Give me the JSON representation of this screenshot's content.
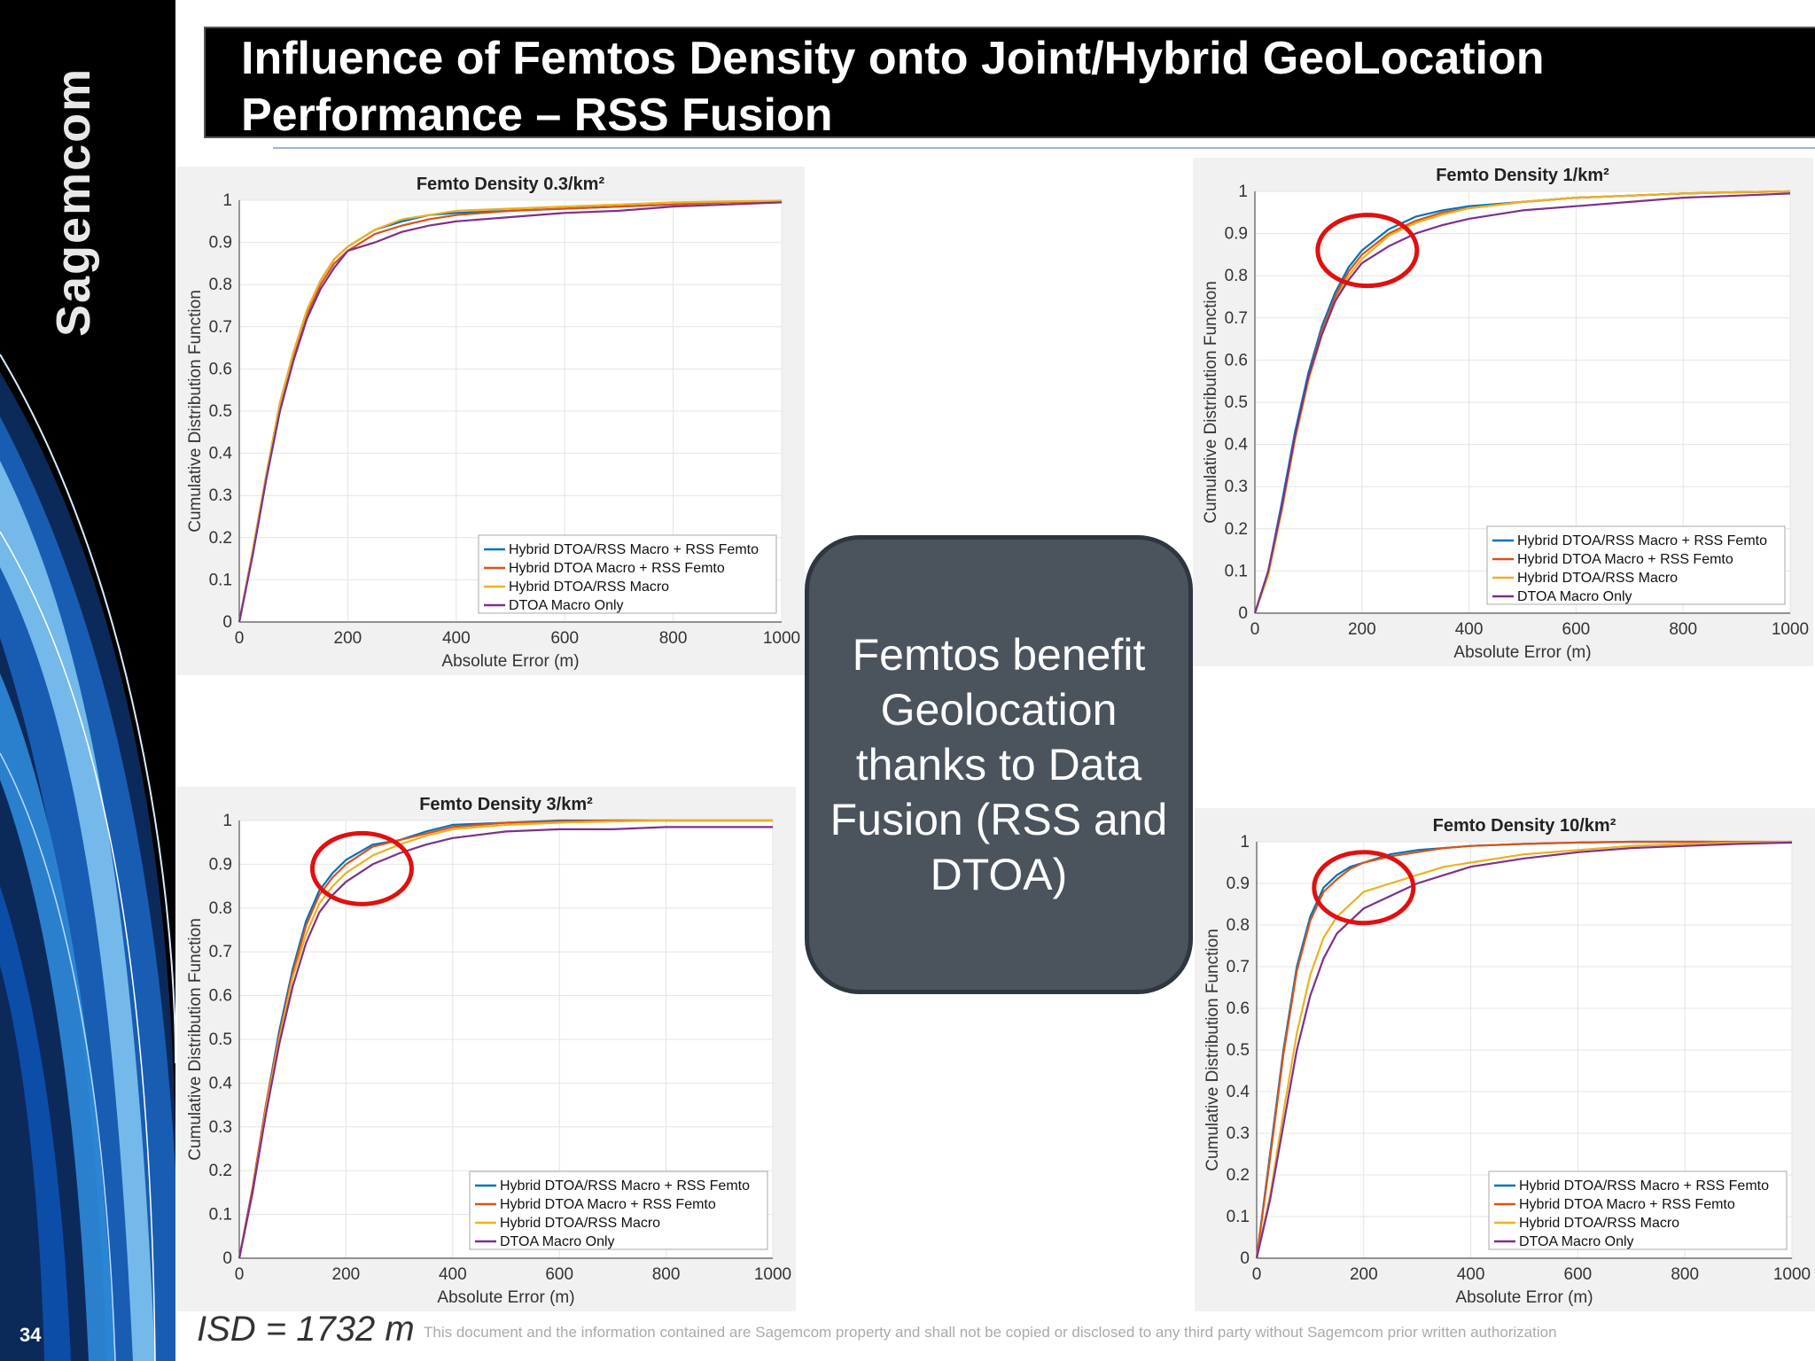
{
  "slide": {
    "title": "Influence of Femtos Density onto Joint/Hybrid GeoLocation Performance – RSS Fusion",
    "page_number": "34",
    "brand": "Sagemcom",
    "callout": "Femtos benefit Geolocation thanks to Data Fusion (RSS and DTOA)",
    "isd": "ISD = 1732 m",
    "footer": "This document and the information contained are Sagemcom property and shall not be copied or disclosed to any third party without Sagemcom prior written authorization",
    "colors": {
      "background": "#ffffff",
      "sidebar": "#000000",
      "title_bar": "#000000",
      "callout_fill": "#4b535d",
      "highlight_circle": "#e01010"
    }
  },
  "chart_data": [
    {
      "type": "line",
      "title": "Femto Density 0.3/km²",
      "xlabel": "Absolute Error (m)",
      "ylabel": "Cumulative Distribution Function",
      "xlim": [
        0,
        1000
      ],
      "ylim": [
        0,
        1
      ],
      "xticks": [
        0,
        200,
        400,
        600,
        800,
        1000
      ],
      "yticks": [
        0,
        0.1,
        0.2,
        0.3,
        0.4,
        0.5,
        0.6,
        0.7,
        0.8,
        0.9,
        1
      ],
      "grid": true,
      "legend_position": "bottom-right",
      "highlight": null,
      "series": [
        {
          "name": "Hybrid DTOA/RSS Macro + RSS Femto",
          "color": "#0072bd",
          "x": [
            0,
            25,
            50,
            75,
            100,
            125,
            150,
            175,
            200,
            250,
            300,
            350,
            400,
            500,
            600,
            700,
            800,
            900,
            1000
          ],
          "y": [
            0,
            0.17,
            0.35,
            0.52,
            0.64,
            0.74,
            0.81,
            0.86,
            0.89,
            0.93,
            0.95,
            0.965,
            0.97,
            0.975,
            0.98,
            0.985,
            0.99,
            0.995,
            0.998
          ]
        },
        {
          "name": "Hybrid DTOA Macro + RSS Femto",
          "color": "#d95319",
          "x": [
            0,
            25,
            50,
            75,
            100,
            125,
            150,
            175,
            200,
            250,
            300,
            350,
            400,
            500,
            600,
            700,
            800,
            900,
            1000
          ],
          "y": [
            0,
            0.17,
            0.35,
            0.51,
            0.63,
            0.73,
            0.8,
            0.85,
            0.88,
            0.92,
            0.94,
            0.955,
            0.965,
            0.975,
            0.98,
            0.985,
            0.99,
            0.995,
            0.998
          ]
        },
        {
          "name": "Hybrid DTOA/RSS Macro",
          "color": "#edb120",
          "x": [
            0,
            25,
            50,
            75,
            100,
            125,
            150,
            175,
            200,
            250,
            300,
            350,
            400,
            500,
            600,
            700,
            800,
            900,
            1000
          ],
          "y": [
            0,
            0.17,
            0.35,
            0.52,
            0.64,
            0.74,
            0.81,
            0.86,
            0.89,
            0.93,
            0.955,
            0.965,
            0.975,
            0.98,
            0.985,
            0.99,
            0.995,
            0.997,
            0.999
          ]
        },
        {
          "name": "DTOA Macro Only",
          "color": "#7e2f8e",
          "x": [
            0,
            25,
            50,
            75,
            100,
            125,
            150,
            175,
            200,
            250,
            300,
            350,
            400,
            500,
            600,
            700,
            800,
            900,
            1000
          ],
          "y": [
            0,
            0.16,
            0.34,
            0.5,
            0.62,
            0.72,
            0.79,
            0.84,
            0.88,
            0.9,
            0.925,
            0.94,
            0.95,
            0.96,
            0.97,
            0.975,
            0.985,
            0.99,
            0.995
          ]
        }
      ]
    },
    {
      "type": "line",
      "title": "Femto Density 1/km²",
      "xlabel": "Absolute Error (m)",
      "ylabel": "Cumulative Distribution Function",
      "xlim": [
        0,
        1000
      ],
      "ylim": [
        0,
        1
      ],
      "xticks": [
        0,
        200,
        400,
        600,
        800,
        1000
      ],
      "yticks": [
        0,
        0.1,
        0.2,
        0.3,
        0.4,
        0.5,
        0.6,
        0.7,
        0.8,
        0.9,
        1
      ],
      "grid": true,
      "legend_position": "bottom-right",
      "highlight": {
        "x": 210,
        "y": 0.86
      },
      "series": [
        {
          "name": "Hybrid DTOA/RSS Macro + RSS Femto",
          "color": "#0072bd",
          "x": [
            0,
            25,
            50,
            75,
            100,
            125,
            150,
            175,
            200,
            250,
            300,
            350,
            400,
            500,
            600,
            700,
            800,
            900,
            1000
          ],
          "y": [
            0,
            0.1,
            0.26,
            0.43,
            0.57,
            0.68,
            0.76,
            0.82,
            0.86,
            0.91,
            0.94,
            0.955,
            0.965,
            0.975,
            0.985,
            0.99,
            0.995,
            0.998,
            1
          ]
        },
        {
          "name": "Hybrid DTOA Macro + RSS Femto",
          "color": "#d95319",
          "x": [
            0,
            25,
            50,
            75,
            100,
            125,
            150,
            175,
            200,
            250,
            300,
            350,
            400,
            500,
            600,
            700,
            800,
            900,
            1000
          ],
          "y": [
            0,
            0.1,
            0.25,
            0.42,
            0.56,
            0.67,
            0.75,
            0.81,
            0.85,
            0.9,
            0.93,
            0.95,
            0.96,
            0.975,
            0.985,
            0.99,
            0.995,
            0.998,
            1
          ]
        },
        {
          "name": "Hybrid DTOA/RSS Macro",
          "color": "#edb120",
          "x": [
            0,
            25,
            50,
            75,
            100,
            125,
            150,
            175,
            200,
            250,
            300,
            350,
            400,
            500,
            600,
            700,
            800,
            900,
            1000
          ],
          "y": [
            0,
            0.09,
            0.24,
            0.41,
            0.55,
            0.66,
            0.74,
            0.8,
            0.84,
            0.895,
            0.925,
            0.945,
            0.96,
            0.975,
            0.985,
            0.99,
            0.995,
            0.998,
            1
          ]
        },
        {
          "name": "DTOA Macro Only",
          "color": "#7e2f8e",
          "x": [
            0,
            25,
            50,
            75,
            100,
            125,
            150,
            175,
            200,
            250,
            300,
            350,
            400,
            500,
            600,
            700,
            800,
            900,
            1000
          ],
          "y": [
            0,
            0.1,
            0.25,
            0.42,
            0.56,
            0.66,
            0.74,
            0.79,
            0.83,
            0.87,
            0.9,
            0.92,
            0.935,
            0.955,
            0.965,
            0.975,
            0.985,
            0.99,
            0.995
          ]
        }
      ]
    },
    {
      "type": "line",
      "title": "Femto Density 3/km²",
      "xlabel": "Absolute Error (m)",
      "ylabel": "Cumulative Distribution Function",
      "xlim": [
        0,
        1000
      ],
      "ylim": [
        0,
        1
      ],
      "xticks": [
        0,
        200,
        400,
        600,
        800,
        1000
      ],
      "yticks": [
        0,
        0.1,
        0.2,
        0.3,
        0.4,
        0.5,
        0.6,
        0.7,
        0.8,
        0.9,
        1
      ],
      "grid": true,
      "legend_position": "bottom-right",
      "highlight": {
        "x": 230,
        "y": 0.89
      },
      "series": [
        {
          "name": "Hybrid DTOA/RSS Macro + RSS Femto",
          "color": "#0072bd",
          "x": [
            0,
            25,
            50,
            75,
            100,
            125,
            150,
            175,
            200,
            250,
            300,
            350,
            400,
            500,
            600,
            700,
            800,
            900,
            1000
          ],
          "y": [
            0,
            0.16,
            0.35,
            0.52,
            0.66,
            0.77,
            0.84,
            0.88,
            0.91,
            0.945,
            0.955,
            0.975,
            0.99,
            0.995,
            1,
            1,
            1,
            1,
            1
          ]
        },
        {
          "name": "Hybrid DTOA Macro + RSS Femto",
          "color": "#d95319",
          "x": [
            0,
            25,
            50,
            75,
            100,
            125,
            150,
            175,
            200,
            250,
            300,
            350,
            400,
            500,
            600,
            700,
            800,
            900,
            1000
          ],
          "y": [
            0,
            0.16,
            0.35,
            0.51,
            0.65,
            0.76,
            0.83,
            0.87,
            0.9,
            0.94,
            0.955,
            0.97,
            0.985,
            0.995,
            0.998,
            1,
            1,
            1,
            1
          ]
        },
        {
          "name": "Hybrid DTOA/RSS Macro",
          "color": "#edb120",
          "x": [
            0,
            25,
            50,
            75,
            100,
            125,
            150,
            175,
            200,
            250,
            300,
            350,
            400,
            500,
            600,
            700,
            800,
            900,
            1000
          ],
          "y": [
            0,
            0.15,
            0.34,
            0.5,
            0.64,
            0.74,
            0.81,
            0.85,
            0.88,
            0.92,
            0.945,
            0.965,
            0.98,
            0.99,
            0.995,
            0.998,
            1,
            1,
            1
          ]
        },
        {
          "name": "DTOA Macro Only",
          "color": "#7e2f8e",
          "x": [
            0,
            25,
            50,
            75,
            100,
            125,
            150,
            175,
            200,
            250,
            300,
            350,
            400,
            500,
            600,
            700,
            800,
            900,
            1000
          ],
          "y": [
            0,
            0.15,
            0.33,
            0.49,
            0.62,
            0.72,
            0.79,
            0.83,
            0.86,
            0.9,
            0.925,
            0.945,
            0.96,
            0.975,
            0.98,
            0.98,
            0.985,
            0.985,
            0.985
          ]
        }
      ]
    },
    {
      "type": "line",
      "title": "Femto Density 10/km²",
      "xlabel": "Absolute Error (m)",
      "ylabel": "Cumulative Distribution Function",
      "xlim": [
        0,
        1000
      ],
      "ylim": [
        0,
        1
      ],
      "xticks": [
        0,
        200,
        400,
        600,
        800,
        1000
      ],
      "yticks": [
        0,
        0.1,
        0.2,
        0.3,
        0.4,
        0.5,
        0.6,
        0.7,
        0.8,
        0.9,
        1
      ],
      "grid": true,
      "legend_position": "bottom-right",
      "highlight": {
        "x": 200,
        "y": 0.89
      },
      "series": [
        {
          "name": "Hybrid DTOA/RSS Macro + RSS Femto",
          "color": "#0072bd",
          "x": [
            0,
            25,
            50,
            75,
            100,
            125,
            150,
            175,
            200,
            250,
            300,
            350,
            400,
            500,
            600,
            700,
            800,
            850
          ],
          "y": [
            0,
            0.25,
            0.5,
            0.7,
            0.82,
            0.89,
            0.92,
            0.94,
            0.95,
            0.97,
            0.98,
            0.985,
            0.99,
            0.995,
            0.998,
            1,
            1,
            1
          ]
        },
        {
          "name": "Hybrid DTOA Macro + RSS Femto",
          "color": "#d95319",
          "x": [
            0,
            25,
            50,
            75,
            100,
            125,
            150,
            175,
            200,
            250,
            300,
            350,
            400,
            500,
            600,
            700,
            800,
            900,
            1000
          ],
          "y": [
            0,
            0.24,
            0.49,
            0.69,
            0.81,
            0.88,
            0.91,
            0.935,
            0.95,
            0.965,
            0.975,
            0.985,
            0.99,
            0.995,
            0.998,
            1,
            1,
            1,
            1
          ]
        },
        {
          "name": "Hybrid DTOA/RSS Macro",
          "color": "#edb120",
          "x": [
            0,
            25,
            50,
            75,
            100,
            125,
            150,
            175,
            200,
            250,
            300,
            350,
            400,
            500,
            600,
            700,
            800,
            900,
            1000
          ],
          "y": [
            0,
            0.15,
            0.35,
            0.54,
            0.68,
            0.77,
            0.82,
            0.85,
            0.88,
            0.9,
            0.92,
            0.94,
            0.95,
            0.97,
            0.98,
            0.99,
            0.995,
            0.998,
            1
          ]
        },
        {
          "name": "DTOA Macro Only",
          "color": "#7e2f8e",
          "x": [
            0,
            25,
            50,
            75,
            100,
            125,
            150,
            175,
            200,
            250,
            300,
            350,
            400,
            500,
            600,
            700,
            800,
            900,
            1000
          ],
          "y": [
            0,
            0.14,
            0.32,
            0.5,
            0.63,
            0.72,
            0.78,
            0.81,
            0.84,
            0.87,
            0.9,
            0.92,
            0.94,
            0.96,
            0.975,
            0.985,
            0.99,
            0.995,
            0.998
          ]
        }
      ]
    }
  ]
}
